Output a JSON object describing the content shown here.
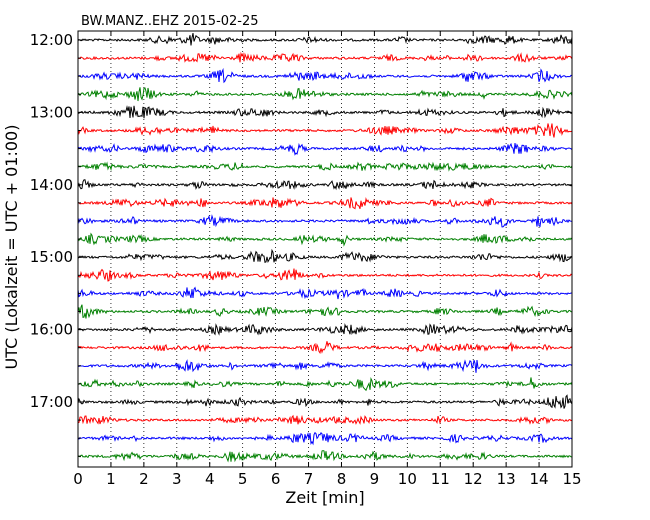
{
  "chart_data": {
    "type": "line",
    "title": "BW.MANZ..EHZ 2015-02-25",
    "xlabel": "Zeit  [min]",
    "ylabel": "UTC (Lokalzeit = UTC + 01:00)",
    "xlim": [
      0,
      15
    ],
    "x_ticks": [
      "0",
      "1",
      "2",
      "3",
      "4",
      "5",
      "6",
      "7",
      "8",
      "9",
      "10",
      "11",
      "12",
      "13",
      "14",
      "15"
    ],
    "y_ticks": [
      "12:00",
      "13:00",
      "14:00",
      "15:00",
      "16:00",
      "17:00"
    ],
    "minutes_per_trace": 15,
    "trace_colors": [
      "#000000",
      "#ff0000",
      "#0000ff",
      "#008000"
    ],
    "trace_starts": [
      "12:00",
      "12:15",
      "12:30",
      "12:45",
      "13:00",
      "13:15",
      "13:30",
      "13:45",
      "14:00",
      "14:15",
      "14:30",
      "14:45",
      "15:00",
      "15:15",
      "15:30",
      "15:45",
      "16:00",
      "16:15",
      "16:30",
      "16:45",
      "17:00",
      "17:15",
      "17:30",
      "17:45"
    ],
    "grid": {
      "x": true,
      "y": false,
      "style": "dotted"
    }
  }
}
